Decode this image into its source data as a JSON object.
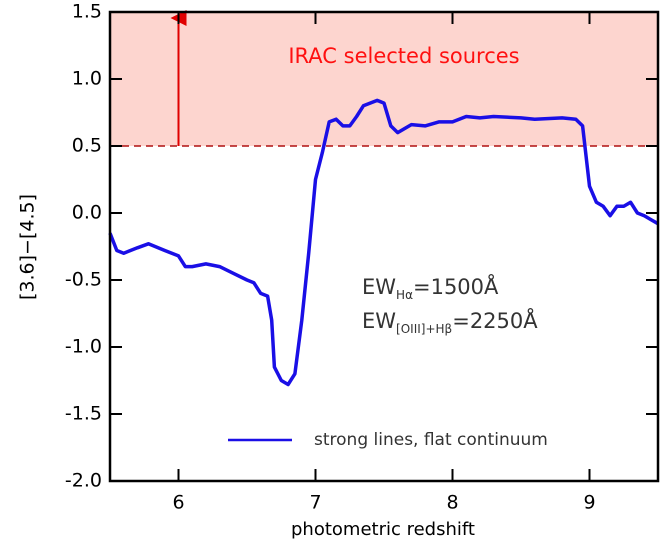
{
  "chart_data": {
    "type": "line",
    "xlabel": "photometric redshift",
    "ylabel": "[3.6]−[4.5]",
    "x": [
      5.5,
      5.55,
      5.6,
      5.7,
      5.78,
      5.9,
      6.0,
      6.05,
      6.1,
      6.2,
      6.3,
      6.4,
      6.5,
      6.55,
      6.6,
      6.65,
      6.68,
      6.7,
      6.75,
      6.8,
      6.85,
      6.9,
      6.95,
      7.0,
      7.05,
      7.1,
      7.15,
      7.2,
      7.25,
      7.3,
      7.35,
      7.45,
      7.5,
      7.55,
      7.6,
      7.7,
      7.8,
      7.9,
      8.0,
      8.1,
      8.2,
      8.3,
      8.5,
      8.6,
      8.8,
      8.9,
      8.95,
      9.0,
      9.05,
      9.1,
      9.15,
      9.2,
      9.25,
      9.3,
      9.35,
      9.4,
      9.45,
      9.5
    ],
    "series": [
      {
        "name": "strong lines, flat continuum",
        "color": "#1a0fe6",
        "values": [
          -0.15,
          -0.28,
          -0.3,
          -0.26,
          -0.23,
          -0.28,
          -0.32,
          -0.4,
          -0.4,
          -0.38,
          -0.4,
          -0.45,
          -0.5,
          -0.52,
          -0.6,
          -0.62,
          -0.8,
          -1.15,
          -1.25,
          -1.28,
          -1.2,
          -0.8,
          -0.3,
          0.25,
          0.45,
          0.68,
          0.7,
          0.65,
          0.65,
          0.72,
          0.8,
          0.84,
          0.82,
          0.65,
          0.6,
          0.66,
          0.65,
          0.68,
          0.68,
          0.72,
          0.71,
          0.72,
          0.71,
          0.7,
          0.71,
          0.7,
          0.65,
          0.2,
          0.08,
          0.05,
          -0.02,
          0.05,
          0.05,
          0.08,
          0.0,
          -0.02,
          -0.05,
          -0.08
        ]
      }
    ],
    "xlim": [
      5.5,
      9.5
    ],
    "xticks": [
      6,
      7,
      8,
      9
    ],
    "ylim": [
      -2.0,
      1.5
    ],
    "yticks": [
      1.5,
      {
        "value": 1.0,
        "label": "1.0"
      },
      0.5,
      {
        "value": 0.0,
        "label": "0.0"
      },
      -0.5,
      {
        "value": -1.0,
        "label": "-1.0"
      },
      -1.5,
      {
        "value": -2.0,
        "label": "-2.0"
      }
    ],
    "region": {
      "label": "IRAC selected sources",
      "ylim": [
        0.5,
        1.5
      ],
      "color": "#fdd5cf",
      "line_color": "#b01010",
      "arrow_x": 6,
      "arrow_color": "#e00000"
    },
    "annotations": [
      {
        "main": "EW",
        "sub": "Hα",
        "rest": "=1500Å"
      },
      {
        "main": "EW",
        "sub": "[OIII]+Hβ",
        "rest": "=2250Å"
      }
    ],
    "legend": "lower right"
  }
}
